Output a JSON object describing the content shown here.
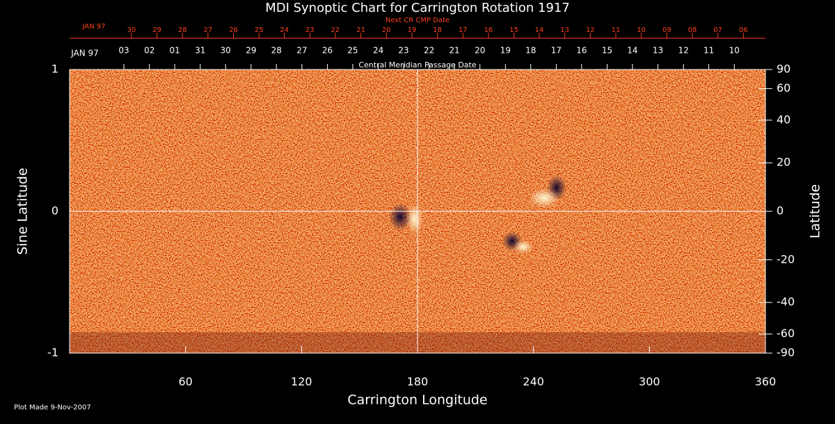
{
  "chart_data": {
    "type": "synoptic-map",
    "title": "MDI Synoptic Chart for Carrington Rotation 1917",
    "x_label": "Carrington Longitude",
    "y_label": "Sine Latitude",
    "y2_label": "Latitude",
    "xlim": [
      0,
      360
    ],
    "xticks": [
      60,
      120,
      180,
      240,
      300,
      360
    ],
    "ylim": [
      -1,
      1
    ],
    "yticks": [
      -1,
      0,
      1
    ],
    "y2lim": [
      -90,
      90
    ],
    "y2scale": "sine",
    "y2ticks": [
      90,
      60,
      40,
      20,
      0,
      -20,
      -40,
      -60,
      -90
    ],
    "crosshair": {
      "x": 180,
      "y": 0
    },
    "next_cmp": {
      "title": "Next CR CMP Date",
      "start_label": "JAN 97",
      "color": "#ff4020",
      "labels": [
        "30",
        "29",
        "28",
        "27",
        "26",
        "25",
        "24",
        "23",
        "22",
        "21",
        "20",
        "19",
        "18",
        "17",
        "16",
        "15",
        "14",
        "13",
        "12",
        "11",
        "10",
        "09",
        "08",
        "07",
        "06"
      ],
      "x": [
        32.0,
        45.2,
        58.4,
        71.6,
        84.8,
        98.0,
        111.1,
        124.3,
        137.5,
        150.7,
        163.9,
        177.1,
        190.3,
        203.5,
        216.7,
        229.9,
        243.0,
        256.2,
        269.4,
        282.6,
        295.8,
        309.0,
        322.2,
        335.4,
        348.6
      ]
    },
    "cmp": {
      "title": "Central Meridian Passage Date",
      "start_label": "JAN 97",
      "color": "#ffffff",
      "labels": [
        "03",
        "02",
        "01",
        "31",
        "30",
        "29",
        "28",
        "27",
        "26",
        "25",
        "24",
        "23",
        "22",
        "21",
        "20",
        "19",
        "18",
        "17",
        "16",
        "15",
        "14",
        "13",
        "12",
        "11",
        "10"
      ],
      "x": [
        28.1,
        41.3,
        54.4,
        67.6,
        80.7,
        93.9,
        107.0,
        120.2,
        133.4,
        146.5,
        159.7,
        172.8,
        186.0,
        199.1,
        212.3,
        225.5,
        238.6,
        251.8,
        264.9,
        278.1,
        291.2,
        304.4,
        317.6,
        330.7,
        343.9
      ]
    },
    "footnote": "Plot Made  9-Nov-2007"
  }
}
